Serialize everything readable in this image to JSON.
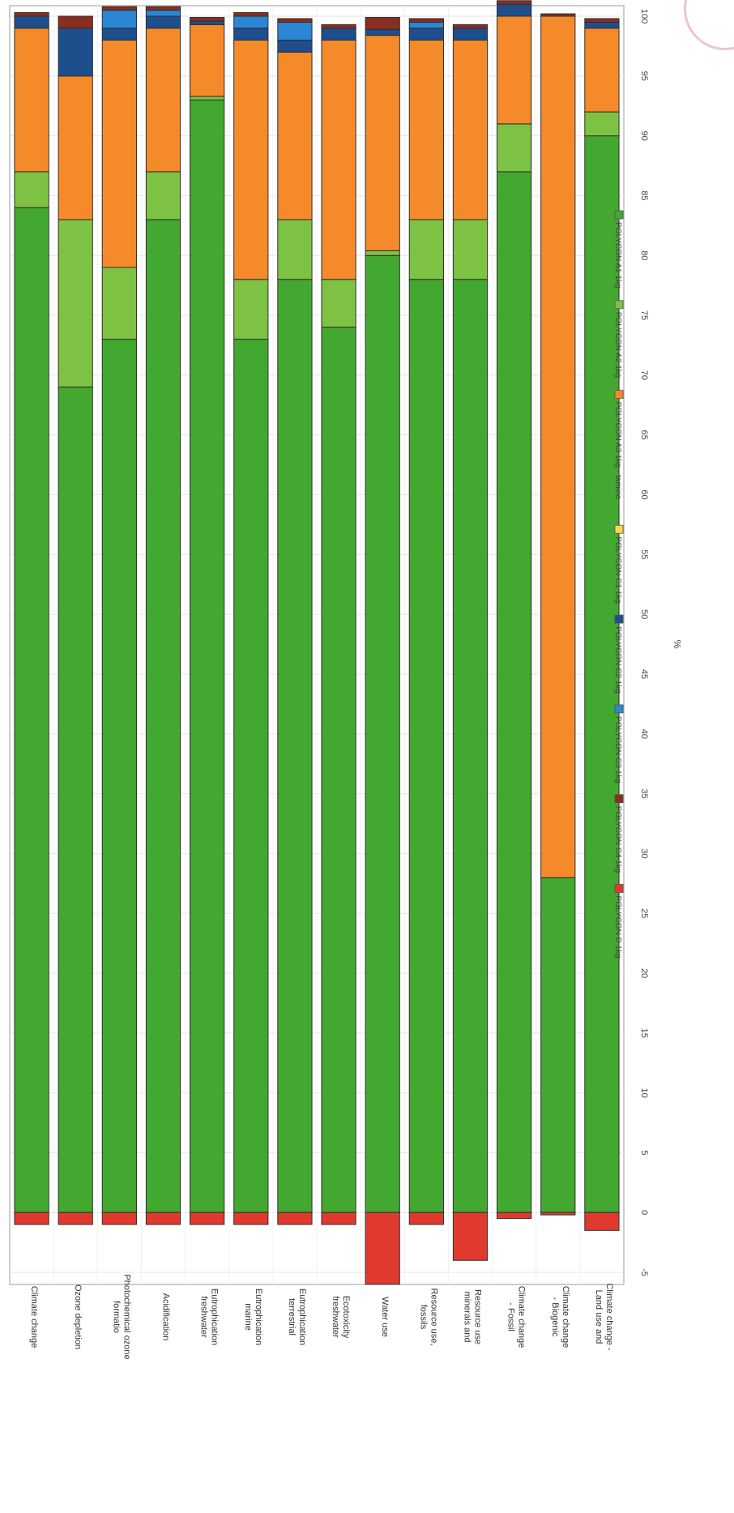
{
  "chart_data": {
    "type": "bar",
    "stacked": true,
    "orientation": "horizontal",
    "xlabel": "%",
    "xlim": [
      -5,
      100
    ],
    "xticks": [
      -5,
      0,
      5,
      10,
      15,
      20,
      25,
      30,
      35,
      40,
      45,
      50,
      55,
      60,
      65,
      70,
      75,
      80,
      85,
      90,
      95,
      100
    ],
    "grid": true,
    "legend_position": "bottom",
    "categories": [
      "Climate change",
      "Ozone depletion",
      "Photochemical ozone formatio",
      "Acidification",
      "Eutrophication freshwater",
      "Eutrophication marine",
      "Eutrophication terrestrial",
      "Ecotoxicity freshwater",
      "Water use",
      "Resource use, fossils",
      "Resource use minerals and",
      "Climate change - Fossil",
      "Climate change - Biogenic",
      "Climate change - Land use and"
    ],
    "series": [
      {
        "name": "POLYCON A1 1kg",
        "color": "#43a82f",
        "values": [
          84,
          69,
          73,
          83,
          93,
          73,
          78,
          74,
          80,
          78,
          78,
          87,
          28,
          90
        ]
      },
      {
        "name": "POLYCON A2 1kg",
        "color": "#7dc242",
        "values": [
          3,
          14,
          6,
          4,
          0.3,
          5,
          5,
          4,
          0.4,
          5,
          5,
          4,
          0,
          2
        ]
      },
      {
        "name": "POLYCON A3 1kg - tamino",
        "color": "#f58a2a",
        "values": [
          12,
          12,
          19,
          12,
          6,
          20,
          14,
          20,
          18,
          15,
          15,
          9,
          72,
          7
        ]
      },
      {
        "name": "POLYCON C1 1kg",
        "color": "#f7d94a",
        "values": [
          0,
          0,
          0,
          0,
          0,
          0,
          0,
          0,
          0,
          0,
          0,
          0,
          0,
          0
        ]
      },
      {
        "name": "POLYCON C2 1kg",
        "color": "#1f4e8c",
        "values": [
          1,
          4,
          1,
          1,
          0.3,
          1,
          1,
          1,
          0.5,
          1,
          1,
          1,
          0,
          0.5
        ]
      },
      {
        "name": "POLYCON C3 1kg",
        "color": "#2b86d6",
        "values": [
          0,
          0,
          1.5,
          0.5,
          0,
          1,
          1.5,
          0,
          0,
          0.5,
          0,
          0,
          0,
          0
        ]
      },
      {
        "name": "POLYCON C4 1kg",
        "color": "#8a2e1f",
        "values": [
          0.3,
          1,
          0.3,
          0.3,
          0.3,
          0.3,
          0.3,
          0.3,
          1,
          0.3,
          0.3,
          0.3,
          0.2,
          0.3
        ]
      },
      {
        "name": "POLYCON D 1kg",
        "color": "#e03a2f",
        "values": [
          -1,
          -1,
          -1,
          -1,
          -1,
          -1,
          -1,
          -1,
          -6,
          -1,
          -4,
          -0.5,
          -0.2,
          -1.5
        ]
      }
    ]
  }
}
